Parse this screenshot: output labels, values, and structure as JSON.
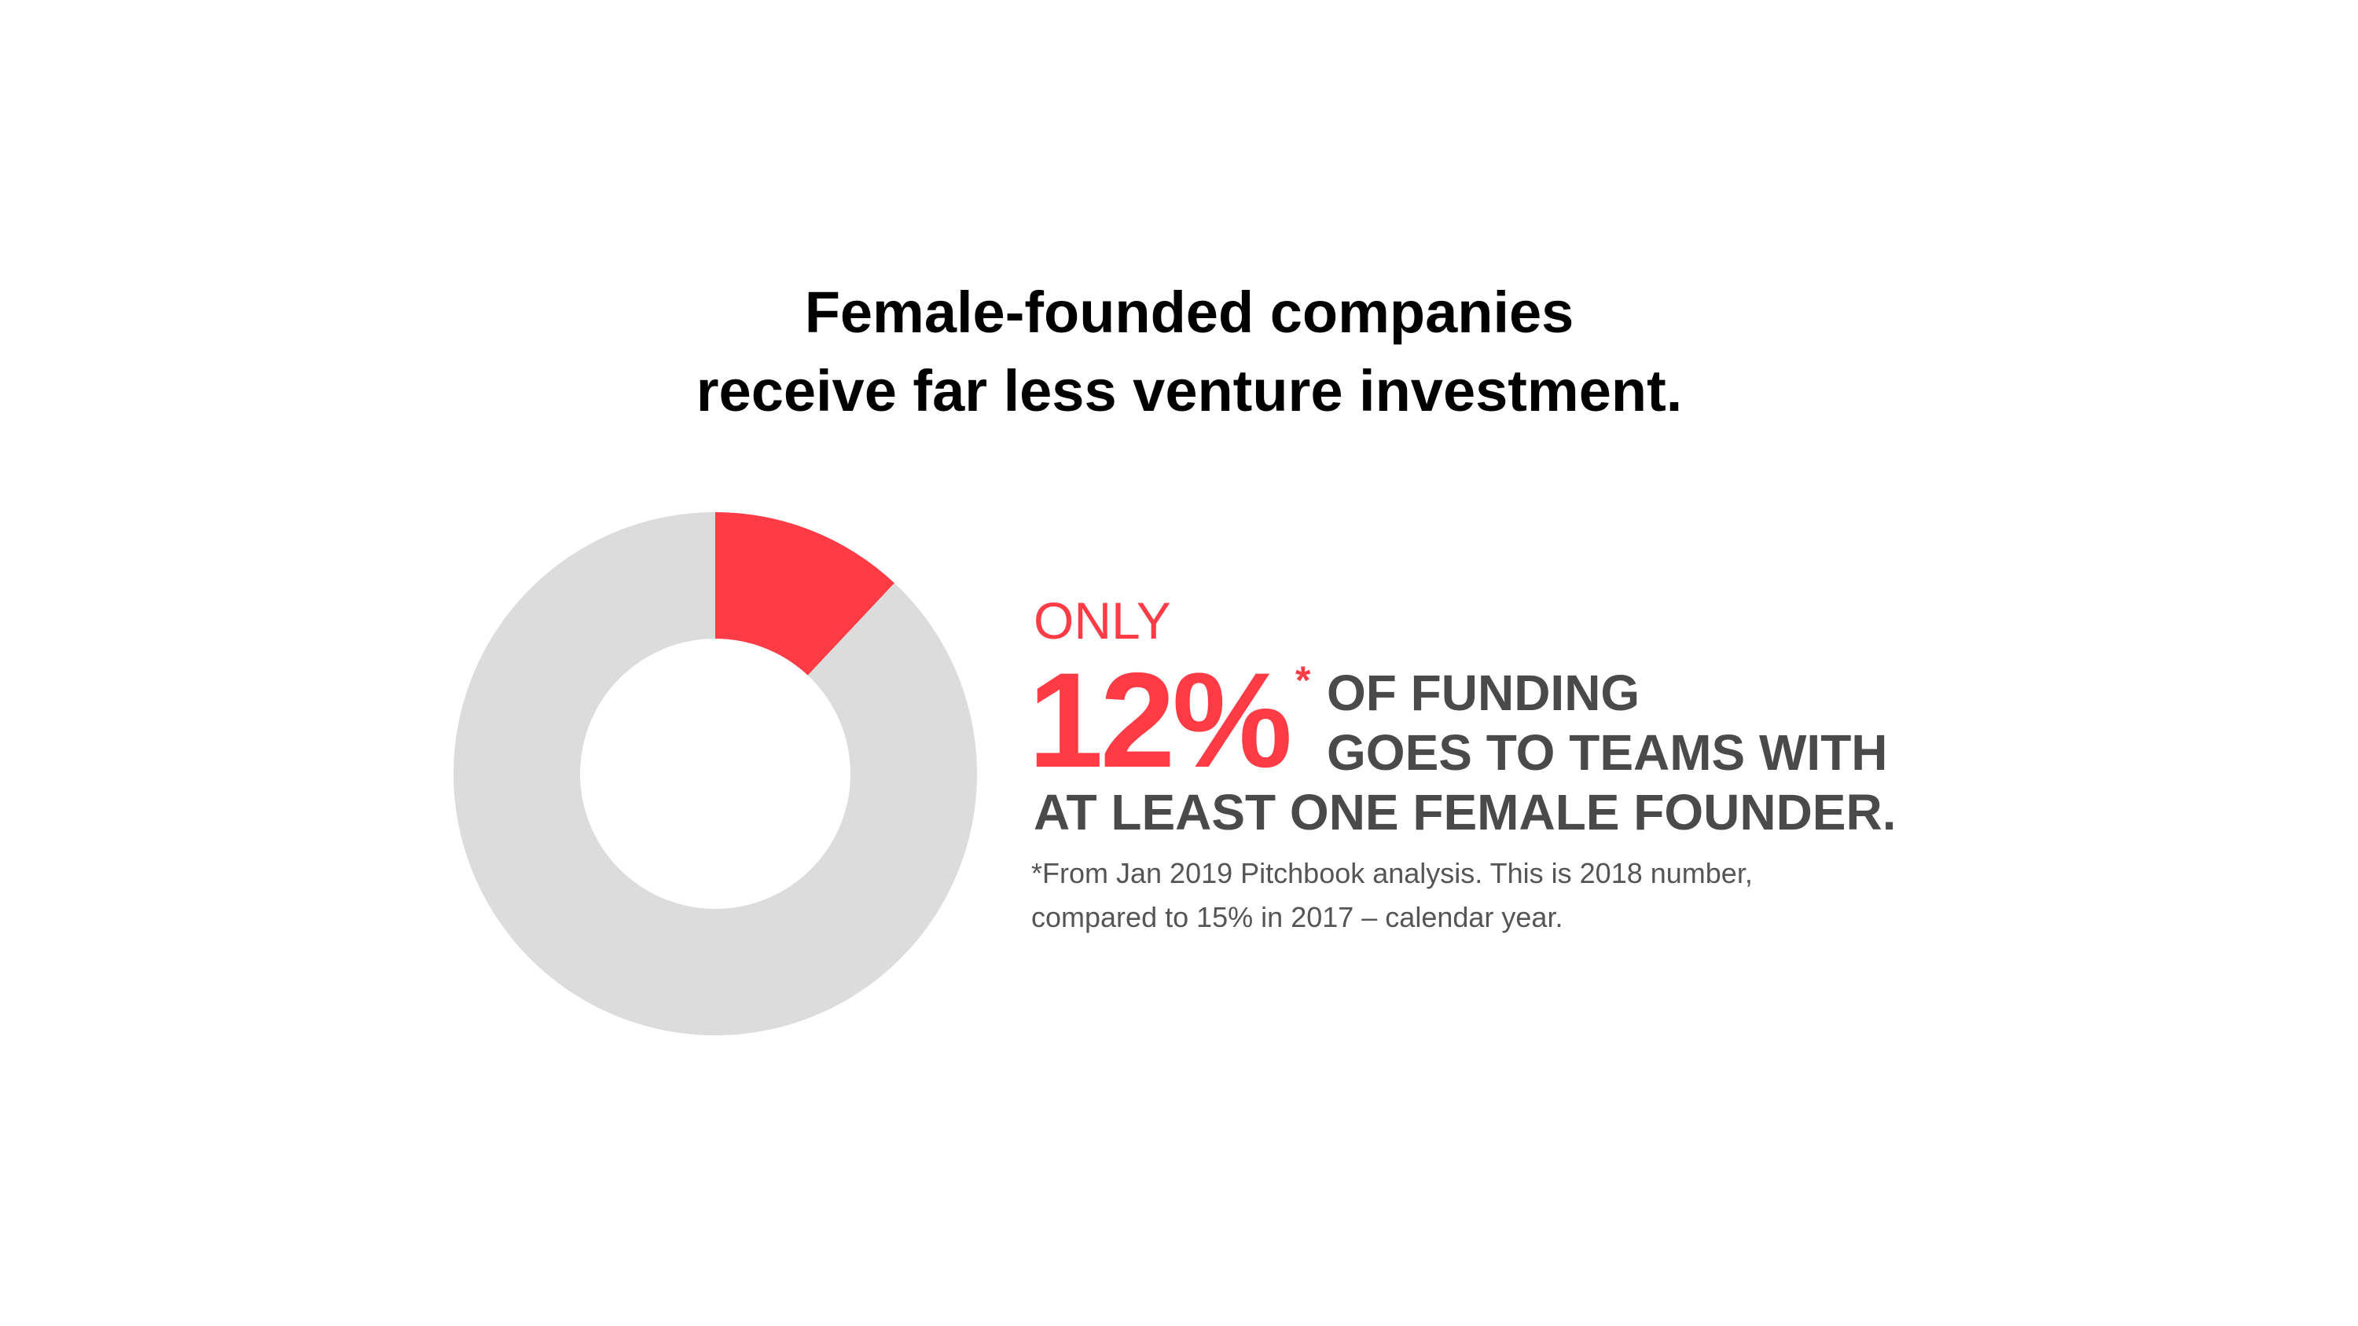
{
  "headline": {
    "line1": "Female-founded companies",
    "line2": "receive far less venture investment."
  },
  "callout": {
    "prefix": "ONLY",
    "percent": "12%",
    "asterisk": "*",
    "line1": "OF FUNDING",
    "line2": "GOES TO TEAMS WITH",
    "line3": "AT LEAST ONE FEMALE FOUNDER."
  },
  "footnote": {
    "line1": "*From Jan 2019 Pitchbook analysis. This is 2018 number,",
    "line2": "compared to 15% in 2017 – calendar year."
  },
  "colors": {
    "accent": "#ff3b45",
    "track": "#dcdcdc",
    "headline": "#000000",
    "body": "#4a4a4a"
  },
  "chart_data": {
    "type": "pie",
    "style": "donut",
    "start": "top",
    "direction": "clockwise",
    "slices": [
      {
        "value": 12,
        "color": "#ff3b45"
      },
      {
        "value": 88,
        "color": "#dcdcdc"
      }
    ]
  }
}
